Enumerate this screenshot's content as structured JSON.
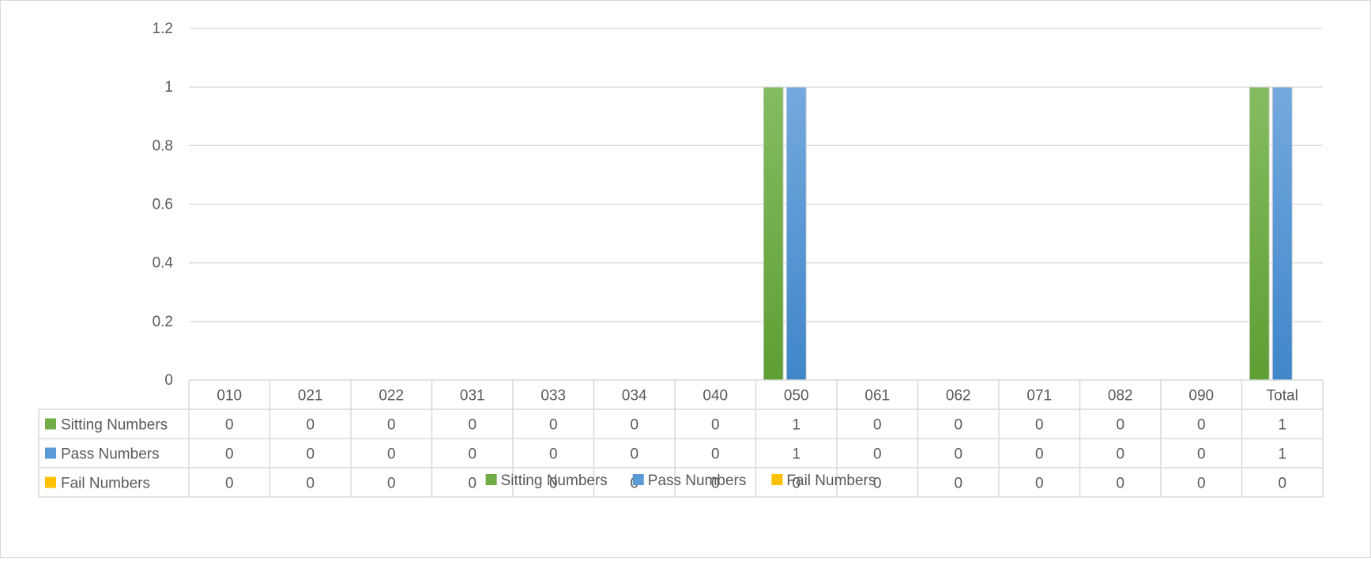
{
  "chart_data": {
    "type": "bar",
    "title": "",
    "xlabel": "",
    "ylabel": "",
    "ylim": [
      0,
      1.2
    ],
    "yticks": [
      "0",
      "0.2",
      "0.4",
      "0.6",
      "0.8",
      "1",
      "1.2"
    ],
    "ytick_values": [
      0,
      0.2,
      0.4,
      0.6,
      0.8,
      1,
      1.2
    ],
    "grid": true,
    "legend_position": "bottom",
    "data_table": true,
    "categories": [
      "010",
      "021",
      "022",
      "031",
      "033",
      "034",
      "040",
      "050",
      "061",
      "062",
      "071",
      "082",
      "090",
      "Total"
    ],
    "series": [
      {
        "name": "Sitting Numbers",
        "color": "#70ad47",
        "values": [
          0,
          0,
          0,
          0,
          0,
          0,
          0,
          1,
          0,
          0,
          0,
          0,
          0,
          1
        ],
        "display": [
          "0",
          "0",
          "0",
          "0",
          "0",
          "0",
          "0",
          "1",
          "0",
          "0",
          "0",
          "0",
          "0",
          "1"
        ]
      },
      {
        "name": "Pass Numbers",
        "color": "#5b9bd5",
        "values": [
          0,
          0,
          0,
          0,
          0,
          0,
          0,
          1,
          0,
          0,
          0,
          0,
          0,
          1
        ],
        "display": [
          "0",
          "0",
          "0",
          "0",
          "0",
          "0",
          "0",
          "1",
          "0",
          "0",
          "0",
          "0",
          "0",
          "1"
        ]
      },
      {
        "name": "Fail Numbers",
        "color": "#ffc000",
        "values": [
          0,
          0,
          0,
          0,
          0,
          0,
          0,
          0,
          0,
          0,
          0,
          0,
          0,
          0
        ],
        "display": [
          "0",
          "0",
          "0",
          "0",
          "0",
          "0",
          "0",
          "0",
          "0",
          "0",
          "0",
          "0",
          "0",
          "0"
        ]
      }
    ]
  }
}
